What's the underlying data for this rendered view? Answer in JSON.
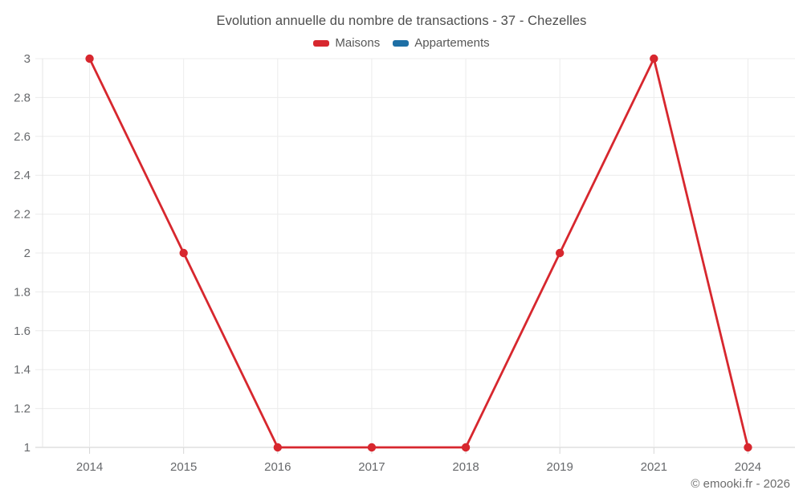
{
  "title": "Evolution annuelle du nombre de transactions - 37 - Chezelles",
  "footer": "© emooki.fr - 2026",
  "legend": [
    {
      "label": "Maisons",
      "color": "#d7272e"
    },
    {
      "label": "Appartements",
      "color": "#1e6fa5"
    }
  ],
  "colors": {
    "maisons_red": "#d7272e",
    "appartements_blue": "#1e6fa5",
    "gridline": "#ececec",
    "axis_line": "#cfcfcf",
    "tick_mark": "#d6d6d6",
    "title_text": "#4d4d4d",
    "tick_text": "#67696c",
    "footer_text": "#6d6d6d"
  },
  "chart_data": {
    "type": "line",
    "title": "Evolution annuelle du nombre de transactions - 37 - Chezelles",
    "categories": [
      "2014",
      "2015",
      "2016",
      "2017",
      "2018",
      "2019",
      "2021",
      "2024"
    ],
    "series": [
      {
        "name": "Maisons",
        "color": "#d7272e",
        "values": [
          3,
          2,
          1,
          1,
          1,
          2,
          3,
          1
        ]
      },
      {
        "name": "Appartements",
        "color": "#1e6fa5",
        "values": []
      }
    ],
    "xlabel": "",
    "ylabel": "",
    "ylim": [
      1,
      3
    ],
    "ytick_step": 0.2,
    "grid": true,
    "legend_position": "top",
    "marker": "circle"
  }
}
